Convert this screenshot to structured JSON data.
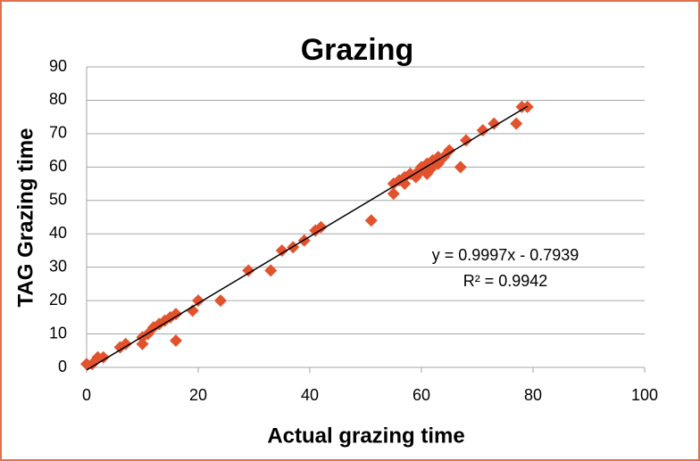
{
  "chart_data": {
    "type": "scatter",
    "title": "Grazing",
    "x_label": "Actual grazing time",
    "y_label": "TAG Grazing time",
    "color": "#e2532d",
    "x": [
      0,
      1,
      2,
      3,
      6,
      7,
      10,
      10,
      11,
      12,
      13,
      14,
      15,
      16,
      16,
      19,
      20,
      24,
      29,
      33,
      35,
      37,
      39,
      41,
      42,
      51,
      55,
      55,
      56,
      57,
      57,
      58,
      59,
      59,
      60,
      60,
      61,
      61,
      62,
      62,
      63,
      63,
      64,
      65,
      67,
      68,
      71,
      73,
      77,
      78,
      79
    ],
    "values": [
      1,
      1,
      3,
      3,
      6,
      7,
      7,
      9,
      10,
      12,
      13,
      14,
      15,
      16,
      8,
      17,
      20,
      20,
      29,
      29,
      35,
      36,
      38,
      41,
      42,
      44,
      55,
      52,
      56,
      55,
      57,
      58,
      58,
      57,
      59,
      60,
      58,
      61,
      60,
      62,
      61,
      63,
      63,
      65,
      60,
      68,
      71,
      73,
      73,
      78,
      78
    ],
    "xlim": [
      0,
      100
    ],
    "xticks": [
      0,
      20,
      40,
      60,
      80,
      100
    ],
    "ylim": [
      0,
      90
    ],
    "yticks": [
      0,
      10,
      20,
      30,
      40,
      50,
      60,
      70,
      80,
      90
    ],
    "grid": true,
    "trendline": {
      "slope": 0.9997,
      "intercept": -0.7939,
      "equation": "y = 0.9997x - 0.7939",
      "r_squared": "R² = 0.9942"
    }
  }
}
